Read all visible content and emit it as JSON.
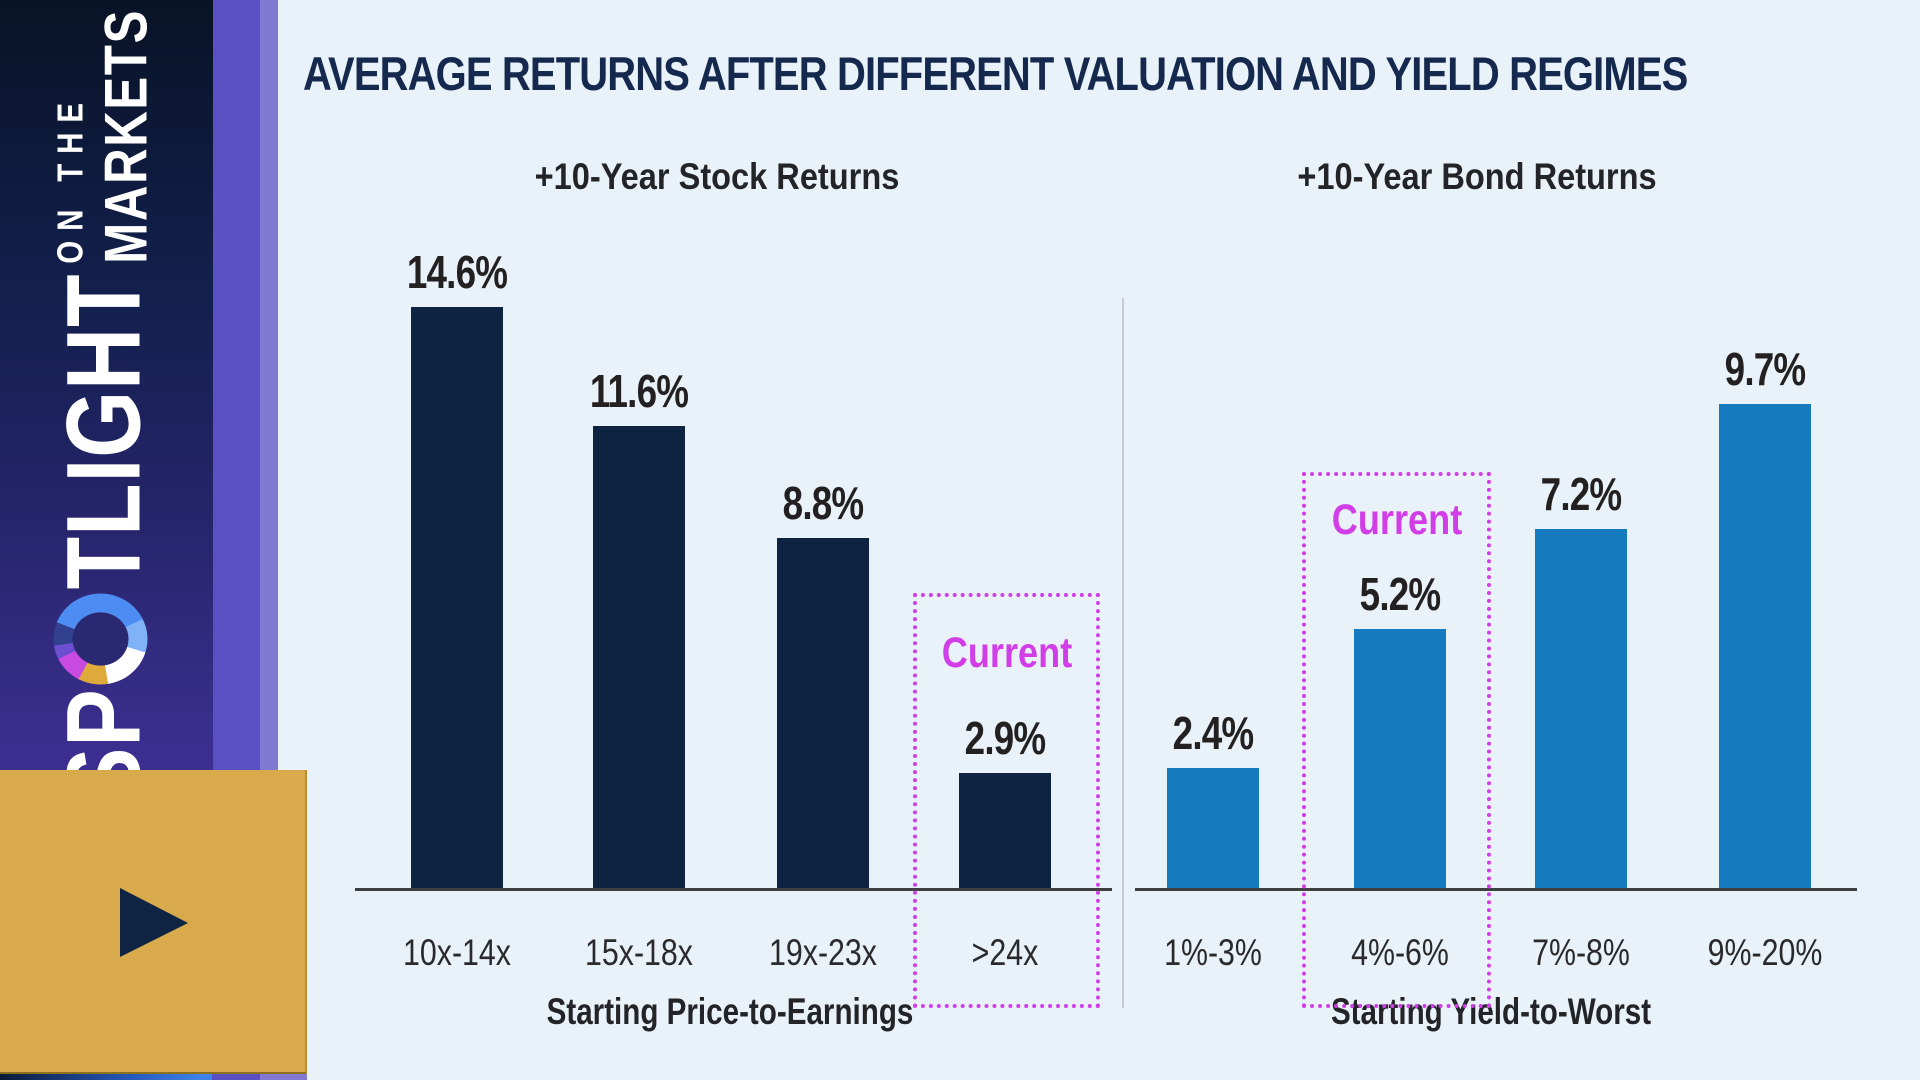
{
  "sidebar": {
    "brand_word": "SPOTLIGHT",
    "brand_word_prefix": "SP",
    "brand_word_suffix": "TLIGHT",
    "tagline_line1": "ON THE",
    "tagline_line2": "MARKETS",
    "play_icon": "▶"
  },
  "header": {
    "title": "AVERAGE RETURNS AFTER DIFFERENT VALUATION AND YIELD REGIMES"
  },
  "chart_data": {
    "type": "bar",
    "title": "AVERAGE RETURNS AFTER DIFFERENT VALUATION AND YIELD REGIMES",
    "unit": "percent",
    "grid": false,
    "legend": false,
    "ylim": [
      0,
      15.5
    ],
    "highlight_color": "#d13ee8",
    "panels": [
      {
        "subtitle": "+10-Year Stock Returns",
        "xlabel": "Starting Price-to-Earnings",
        "categories": [
          "10x-14x",
          "15x-18x",
          "19x-23x",
          ">24x"
        ],
        "values": [
          14.6,
          11.6,
          8.8,
          2.9
        ],
        "value_labels": [
          "14.6%",
          "11.6%",
          "8.8%",
          "2.9%"
        ],
        "bar_color": "#0e2342",
        "highlight": {
          "category": ">24x",
          "category_index": 3,
          "label": "Current"
        }
      },
      {
        "subtitle": "+10-Year Bond Returns",
        "xlabel": "Starting Yield-to-Worst",
        "categories": [
          "1%-3%",
          "4%-6%",
          "7%-8%",
          "9%-20%"
        ],
        "values": [
          2.4,
          5.2,
          7.2,
          9.7
        ],
        "value_labels": [
          "2.4%",
          "5.2%",
          "7.2%",
          "9.7%"
        ],
        "bar_color": "#157abe",
        "highlight": {
          "category": "4%-6%",
          "category_index": 1,
          "label": "Current"
        }
      }
    ]
  },
  "colors": {
    "background": "#eaf2f9",
    "title_text": "#15294e",
    "bar_navy": "#0e2342",
    "bar_blue": "#157abe",
    "highlight_magenta": "#d13ee8",
    "sidebar_gold": "#d9aa4b",
    "sidebar_purple": "#5a50c3",
    "sidebar_purple_light": "#8279d2"
  }
}
